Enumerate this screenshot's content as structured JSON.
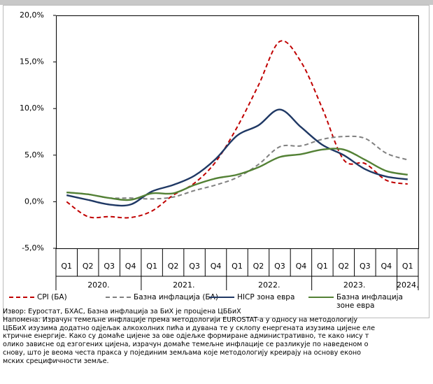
{
  "chart_data": {
    "type": "line",
    "categories": [
      "Q1",
      "Q2",
      "Q3",
      "Q4",
      "Q1",
      "Q2",
      "Q3",
      "Q4",
      "Q1",
      "Q2",
      "Q3",
      "Q4",
      "Q1",
      "Q2",
      "Q3",
      "Q4",
      "Q1"
    ],
    "years": [
      {
        "label": "2020.",
        "span": 4
      },
      {
        "label": "2021.",
        "span": 4
      },
      {
        "label": "2022.",
        "span": 4
      },
      {
        "label": "2023.",
        "span": 4
      },
      {
        "label": "2024.",
        "span": 1
      }
    ],
    "ylim": [
      -5,
      20
    ],
    "yticks": [
      {
        "value": 20,
        "label": "20,0%"
      },
      {
        "value": 15,
        "label": "15,0%"
      },
      {
        "value": 10,
        "label": "10,0%"
      },
      {
        "value": 5,
        "label": "5,0%"
      },
      {
        "value": 0,
        "label": "0,0%"
      },
      {
        "value": -5,
        "label": "-5,0%"
      }
    ],
    "series": [
      {
        "name": "CPI (БА)",
        "color": "#c00000",
        "dash": true,
        "values": [
          0.0,
          -1.6,
          -1.6,
          -1.7,
          -1.0,
          0.7,
          2.0,
          4.3,
          8.0,
          12.5,
          17.2,
          15.0,
          10.0,
          4.5,
          4.1,
          2.3,
          1.9
        ]
      },
      {
        "name": "Базна инфлација (БА)",
        "color": "#808080",
        "dash": true,
        "values": [
          1.0,
          0.8,
          0.4,
          0.4,
          0.3,
          0.5,
          1.2,
          1.8,
          2.6,
          4.0,
          5.9,
          6.0,
          6.7,
          7.0,
          6.8,
          5.2,
          4.5
        ]
      },
      {
        "name": "HICP зона евра",
        "color": "#1f3864",
        "dash": false,
        "values": [
          0.7,
          0.2,
          -0.3,
          -0.3,
          1.1,
          1.8,
          2.8,
          4.6,
          7.1,
          8.2,
          9.9,
          8.0,
          6.1,
          5.0,
          3.5,
          2.7,
          2.4
        ]
      },
      {
        "name": "Базна инфлација зоне евра",
        "color": "#538135",
        "dash": false,
        "values": [
          1.0,
          0.8,
          0.4,
          0.2,
          0.9,
          0.9,
          1.8,
          2.5,
          2.9,
          3.7,
          4.8,
          5.1,
          5.6,
          5.6,
          4.5,
          3.3,
          2.9
        ]
      }
    ]
  },
  "notes": [
    "Извор: Еуростат, БХАС, Базна инфлација за БиХ је процјена ЦББиХ",
    "Напомена: Израчун темељне инфлације према методологији EUROSTAT-а  у односу на методологију",
    "ЦББиХ изузима додатно одјељак алкохолних пића и дувана те у склопу енергената изузима цијене еле",
    "ктричне енергије. Како су домаће цијене за ове одјељке формиране административно, те како нису т",
    "олико зависне од езгогених цијена, израчун домаће темељне инфлације се разликује по наведеном о",
    "снову, што је веома честа пракса у појединим земљама које методологију креирају на основу еконо",
    "мских сpецифичности земље."
  ]
}
